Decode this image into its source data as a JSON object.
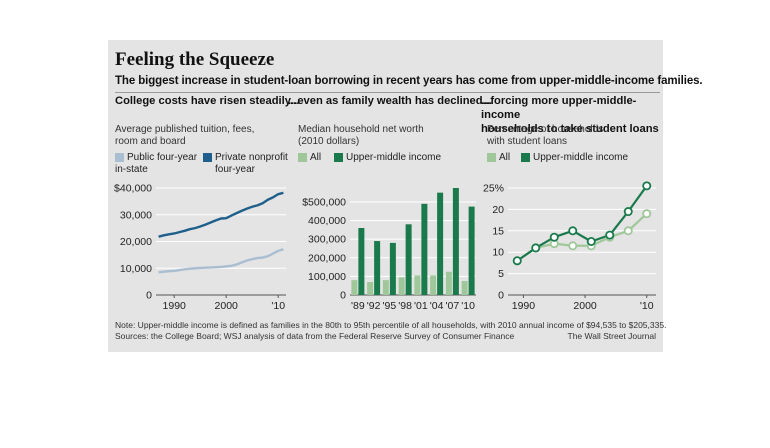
{
  "header": {
    "title": "Feeling the Squeeze",
    "subtitle": "The biggest increase in student-loan borrowing in recent years has come from upper-middle-income families."
  },
  "colors": {
    "dark_blue": "#1f5f8b",
    "light_blue": "#a9bfd1",
    "dark_green": "#1a7a4c",
    "light_green": "#9fc79a",
    "panel_bg": "#e4e4e4"
  },
  "panels": [
    {
      "headline": "College costs have risen steadily...",
      "unit_line1": "Average published tuition, fees,",
      "unit_line2": "room and board",
      "legend": [
        {
          "line1": "Public four-year",
          "line2": "in-state",
          "color": "#a9bfd1"
        },
        {
          "line1": "Private nonprofit",
          "line2": "four-year",
          "color": "#1f5f8b"
        }
      ]
    },
    {
      "headline": "...even as family wealth has declined...",
      "unit_line1": "Median household net worth",
      "unit_line2": "(2010 dollars)",
      "legend": [
        {
          "label": "All",
          "color": "#9fc79a"
        },
        {
          "label": "Upper-middle income",
          "color": "#1a7a4c"
        }
      ]
    },
    {
      "headline_line1": "...forcing more upper-middle-income",
      "headline_line2": "households to take student loans",
      "unit_line1": "Percentage of households",
      "unit_line2": "with student loans",
      "legend": [
        {
          "label": "All",
          "color": "#9fc79a"
        },
        {
          "label": "Upper-middle income",
          "color": "#1a7a4c"
        }
      ]
    }
  ],
  "footer": {
    "note": "Note: Upper-middle income is defined as families in the 80th to 95th percentile of all households, with 2010 annual income of $94,535 to $205,335.",
    "sources": "Sources: the College Board; WSJ analysis of data from the Federal Reserve Survey of Consumer Finance",
    "credit": "The Wall Street Journal"
  },
  "chart_data": [
    {
      "type": "line",
      "x": [
        1987,
        1988,
        1989,
        1990,
        1991,
        1992,
        1993,
        1994,
        1995,
        1996,
        1997,
        1998,
        1999,
        2000,
        2001,
        2002,
        2003,
        2004,
        2005,
        2006,
        2007,
        2008,
        2009,
        2010,
        2011
      ],
      "series": [
        {
          "name": "Public four-year in-state",
          "values": [
            8500,
            8700,
            8900,
            9000,
            9300,
            9600,
            9800,
            10000,
            10100,
            10200,
            10300,
            10400,
            10500,
            10700,
            10900,
            11400,
            12200,
            12900,
            13400,
            13800,
            14000,
            14500,
            15500,
            16500,
            17100
          ]
        },
        {
          "name": "Private nonprofit four-year",
          "values": [
            21800,
            22300,
            22700,
            23000,
            23500,
            24000,
            24600,
            25000,
            25600,
            26300,
            27100,
            27900,
            28600,
            28700,
            29700,
            30600,
            31500,
            32300,
            33000,
            33500,
            34300,
            35600,
            36500,
            37700,
            38200
          ]
        }
      ],
      "ylim": [
        0,
        40000
      ],
      "y_ticks": [
        "$40,000",
        "30,000",
        "20,000",
        "10,000",
        "0"
      ],
      "x_ticks": [
        "1990",
        "2000",
        "'10"
      ],
      "grid": true
    },
    {
      "type": "bar",
      "categories": [
        "'89",
        "'92",
        "'95",
        "'98",
        "'01",
        "'04",
        "'07",
        "'10"
      ],
      "series": [
        {
          "name": "All",
          "values": [
            80000,
            70000,
            80000,
            95000,
            105000,
            105000,
            125000,
            75000
          ]
        },
        {
          "name": "Upper-middle income",
          "values": [
            360000,
            290000,
            280000,
            380000,
            490000,
            550000,
            575000,
            475000
          ]
        }
      ],
      "ylim": [
        0,
        575000
      ],
      "y_ticks": [
        "$500,000",
        "400,000",
        "300,000",
        "200,000",
        "100,000",
        "0"
      ],
      "grid": true
    },
    {
      "type": "line",
      "x": [
        1989,
        1992,
        1995,
        1998,
        2001,
        2004,
        2007,
        2010
      ],
      "series": [
        {
          "name": "All",
          "values": [
            8,
            11,
            12,
            11.5,
            11.5,
            13.5,
            15,
            19
          ]
        },
        {
          "name": "Upper-middle income",
          "values": [
            8,
            11,
            13.5,
            15,
            12.5,
            14,
            19.5,
            25.5
          ]
        }
      ],
      "ylim": [
        0,
        25
      ],
      "y_ticks": [
        "25%",
        "20",
        "15",
        "10",
        "5",
        "0"
      ],
      "x_ticks": [
        "1990",
        "2000",
        "'10"
      ],
      "grid": true
    }
  ]
}
